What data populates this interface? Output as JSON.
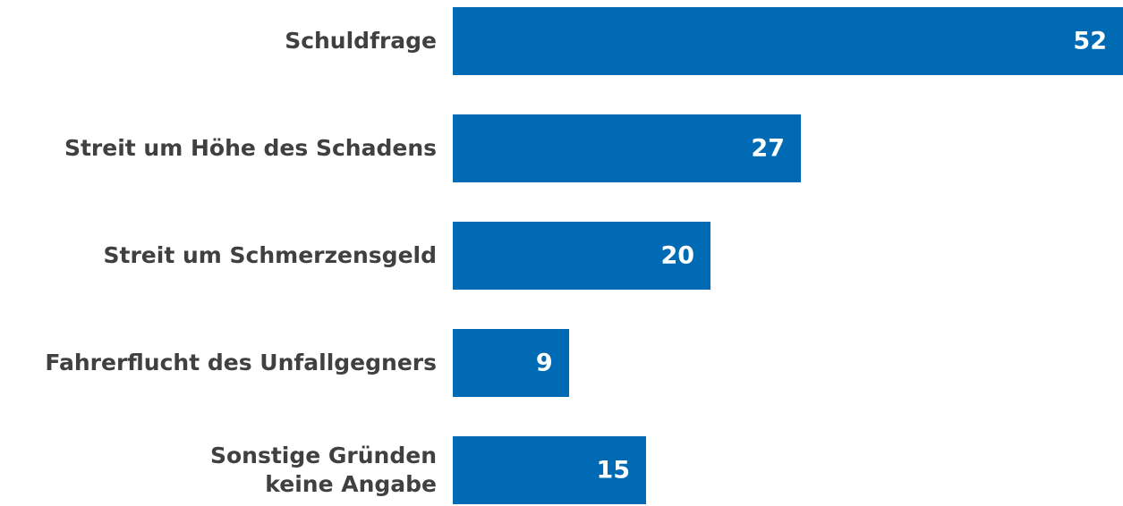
{
  "chart_data": {
    "type": "bar",
    "orientation": "horizontal",
    "categories": [
      "Schuldfrage",
      "Streit um Höhe des Schadens",
      "Streit um Schmerzensgeld",
      "Fahrerflucht des Unfallgegners",
      "Sonstige Gründen\nkeine Angabe"
    ],
    "values": [
      52,
      27,
      20,
      9,
      15
    ],
    "color": "#006ab5"
  }
}
